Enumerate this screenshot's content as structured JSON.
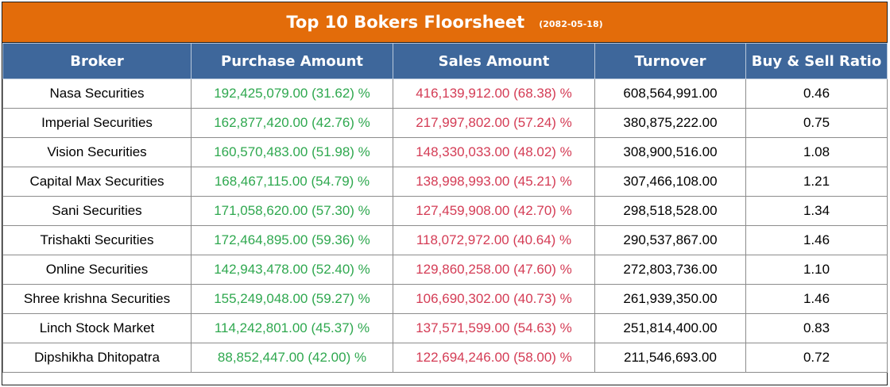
{
  "title": "Top 10 Bokers Floorsheet",
  "date": "(2082-05-18)",
  "columns": [
    "Broker",
    "Purchase Amount",
    "Sales Amount",
    "Turnover",
    "Buy & Sell Ratio"
  ],
  "colors": {
    "title_bg": "#e36c0a",
    "header_bg": "#3e679b",
    "purchase_text": "#2fa84f",
    "sales_text": "#d43c55"
  },
  "rows": [
    {
      "broker": "Nasa Securities",
      "purchase": "192,425,079.00 (31.62) %",
      "sales": "416,139,912.00 (68.38) %",
      "turnover": "608,564,991.00",
      "ratio": "0.46"
    },
    {
      "broker": "Imperial Securities",
      "purchase": "162,877,420.00 (42.76) %",
      "sales": "217,997,802.00 (57.24) %",
      "turnover": "380,875,222.00",
      "ratio": "0.75"
    },
    {
      "broker": "Vision Securities",
      "purchase": "160,570,483.00 (51.98) %",
      "sales": "148,330,033.00 (48.02) %",
      "turnover": "308,900,516.00",
      "ratio": "1.08"
    },
    {
      "broker": "Capital Max Securities",
      "purchase": "168,467,115.00 (54.79) %",
      "sales": "138,998,993.00 (45.21) %",
      "turnover": "307,466,108.00",
      "ratio": "1.21"
    },
    {
      "broker": "Sani Securities",
      "purchase": "171,058,620.00 (57.30) %",
      "sales": "127,459,908.00 (42.70) %",
      "turnover": "298,518,528.00",
      "ratio": "1.34"
    },
    {
      "broker": "Trishakti Securities",
      "purchase": "172,464,895.00 (59.36) %",
      "sales": "118,072,972.00 (40.64) %",
      "turnover": "290,537,867.00",
      "ratio": "1.46"
    },
    {
      "broker": "Online Securities",
      "purchase": "142,943,478.00 (52.40) %",
      "sales": "129,860,258.00 (47.60) %",
      "turnover": "272,803,736.00",
      "ratio": "1.10"
    },
    {
      "broker": "Shree krishna Securities",
      "purchase": "155,249,048.00 (59.27) %",
      "sales": "106,690,302.00 (40.73) %",
      "turnover": "261,939,350.00",
      "ratio": "1.46"
    },
    {
      "broker": "Linch Stock Market",
      "purchase": "114,242,801.00 (45.37) %",
      "sales": "137,571,599.00 (54.63) %",
      "turnover": "251,814,400.00",
      "ratio": "0.83"
    },
    {
      "broker": "Dipshikha Dhitopatra",
      "purchase": "88,852,447.00 (42.00) %",
      "sales": "122,694,246.00 (58.00) %",
      "turnover": "211,546,693.00",
      "ratio": "0.72"
    }
  ]
}
